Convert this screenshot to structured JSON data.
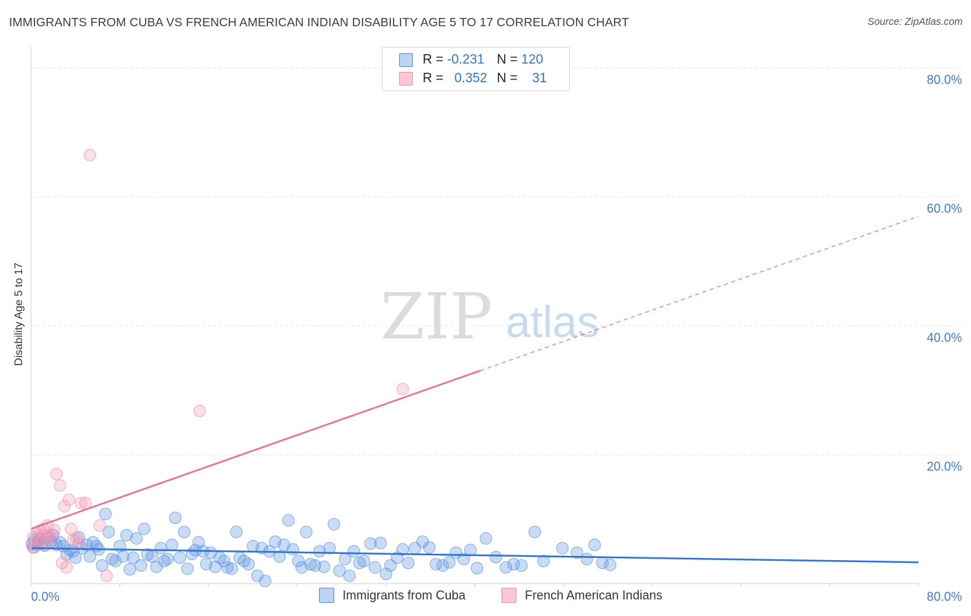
{
  "title": "IMMIGRANTS FROM CUBA VS FRENCH AMERICAN INDIAN DISABILITY AGE 5 TO 17 CORRELATION CHART",
  "source": "Source: ZipAtlas.com",
  "watermark": {
    "zip": "ZIP",
    "atlas": "atlas"
  },
  "legend": {
    "r_label": "R =",
    "n_label": "N =",
    "series": [
      {
        "name": "Immigrants from Cuba",
        "r": "-0.231",
        "n": "120"
      },
      {
        "name": "French American Indians",
        "r": "0.352",
        "n": "31"
      }
    ]
  },
  "chart_data": {
    "type": "scatter",
    "title": "IMMIGRANTS FROM CUBA VS FRENCH AMERICAN INDIAN DISABILITY AGE 5 TO 17 CORRELATION CHART",
    "xlabel": "",
    "ylabel": "Disability Age 5 to 17",
    "xlim": [
      0,
      80
    ],
    "ylim": [
      0,
      82
    ],
    "x_tick_labels": [
      "0.0%",
      "80.0%"
    ],
    "y_ticks": [
      20,
      40,
      60,
      80
    ],
    "y_tick_labels": [
      "20.0%",
      "40.0%",
      "60.0%",
      "80.0%"
    ],
    "colors": {
      "cuba": "#5b93df",
      "french": "#f094b1",
      "cuba_line": "#2f74d0",
      "french_line": "#e8709a"
    },
    "series": [
      {
        "name": "Immigrants from Cuba",
        "trend": {
          "x": [
            0,
            80
          ],
          "y": [
            5.5,
            3.3
          ],
          "style": "solid"
        },
        "points": [
          [
            0.1,
            6.2
          ],
          [
            0.2,
            5.6
          ],
          [
            0.3,
            6.8
          ],
          [
            0.5,
            6.0
          ],
          [
            0.6,
            6.5
          ],
          [
            0.8,
            7.0
          ],
          [
            1.0,
            6.2
          ],
          [
            1.2,
            5.9
          ],
          [
            1.5,
            7.2
          ],
          [
            1.8,
            6.5
          ],
          [
            2.0,
            7.5
          ],
          [
            2.3,
            6.0
          ],
          [
            2.6,
            6.4
          ],
          [
            2.9,
            5.8
          ],
          [
            3.2,
            4.5
          ],
          [
            3.5,
            5.2
          ],
          [
            3.8,
            5.0
          ],
          [
            4.0,
            4.0
          ],
          [
            4.3,
            7.2
          ],
          [
            4.6,
            5.5
          ],
          [
            5.0,
            6.0
          ],
          [
            5.3,
            4.2
          ],
          [
            5.6,
            6.4
          ],
          [
            5.9,
            5.8
          ],
          [
            6.1,
            5.3
          ],
          [
            6.4,
            2.8
          ],
          [
            6.7,
            10.8
          ],
          [
            7.0,
            8.0
          ],
          [
            7.3,
            3.8
          ],
          [
            7.6,
            3.5
          ],
          [
            8.0,
            5.8
          ],
          [
            8.3,
            4.2
          ],
          [
            8.6,
            7.5
          ],
          [
            8.9,
            2.2
          ],
          [
            9.2,
            4.0
          ],
          [
            9.5,
            7.0
          ],
          [
            9.9,
            2.8
          ],
          [
            10.2,
            8.5
          ],
          [
            10.5,
            4.5
          ],
          [
            10.9,
            4.2
          ],
          [
            11.3,
            2.6
          ],
          [
            11.7,
            5.5
          ],
          [
            12.0,
            3.5
          ],
          [
            12.3,
            3.8
          ],
          [
            12.7,
            6.0
          ],
          [
            13.0,
            10.2
          ],
          [
            13.4,
            4.0
          ],
          [
            13.8,
            8.0
          ],
          [
            14.1,
            2.3
          ],
          [
            14.5,
            4.6
          ],
          [
            14.8,
            5.2
          ],
          [
            15.1,
            6.4
          ],
          [
            15.5,
            5.0
          ],
          [
            15.8,
            3.0
          ],
          [
            16.2,
            4.8
          ],
          [
            16.6,
            2.6
          ],
          [
            17.0,
            4.0
          ],
          [
            17.4,
            3.5
          ],
          [
            17.7,
            2.5
          ],
          [
            18.1,
            2.3
          ],
          [
            18.5,
            8.0
          ],
          [
            18.8,
            4.0
          ],
          [
            19.2,
            3.5
          ],
          [
            19.6,
            3.0
          ],
          [
            20.0,
            5.8
          ],
          [
            20.4,
            1.2
          ],
          [
            20.8,
            5.5
          ],
          [
            21.1,
            0.4
          ],
          [
            21.5,
            5.0
          ],
          [
            22.0,
            6.5
          ],
          [
            22.4,
            4.2
          ],
          [
            22.8,
            6.0
          ],
          [
            23.2,
            9.8
          ],
          [
            23.6,
            5.3
          ],
          [
            24.1,
            3.5
          ],
          [
            24.4,
            2.5
          ],
          [
            24.8,
            8.0
          ],
          [
            25.2,
            3.0
          ],
          [
            25.6,
            2.8
          ],
          [
            26.0,
            5.0
          ],
          [
            26.4,
            2.6
          ],
          [
            26.9,
            5.5
          ],
          [
            27.3,
            9.2
          ],
          [
            27.8,
            2.0
          ],
          [
            28.3,
            3.8
          ],
          [
            28.7,
            1.2
          ],
          [
            29.1,
            5.0
          ],
          [
            29.6,
            3.2
          ],
          [
            30.0,
            3.5
          ],
          [
            30.6,
            6.2
          ],
          [
            31.0,
            2.5
          ],
          [
            31.5,
            6.3
          ],
          [
            32.0,
            1.5
          ],
          [
            32.4,
            2.8
          ],
          [
            33.0,
            4.0
          ],
          [
            33.5,
            5.3
          ],
          [
            34.0,
            3.2
          ],
          [
            34.6,
            5.5
          ],
          [
            35.3,
            6.5
          ],
          [
            35.9,
            5.6
          ],
          [
            36.5,
            3.0
          ],
          [
            37.1,
            2.8
          ],
          [
            37.7,
            3.3
          ],
          [
            38.3,
            4.8
          ],
          [
            39.0,
            3.8
          ],
          [
            39.6,
            5.2
          ],
          [
            40.2,
            2.4
          ],
          [
            41.0,
            7.0
          ],
          [
            41.9,
            4.1
          ],
          [
            42.8,
            2.5
          ],
          [
            43.5,
            3.0
          ],
          [
            44.2,
            2.8
          ],
          [
            45.4,
            8.0
          ],
          [
            46.2,
            3.5
          ],
          [
            47.9,
            5.5
          ],
          [
            49.2,
            4.8
          ],
          [
            50.1,
            3.8
          ],
          [
            50.8,
            6.0
          ],
          [
            51.5,
            3.2
          ],
          [
            52.2,
            2.9
          ]
        ]
      },
      {
        "name": "French American Indians",
        "trend": {
          "x": [
            0,
            80
          ],
          "y": [
            8.5,
            57.0
          ],
          "solid_until_x": 40.5
        },
        "points": [
          [
            0.1,
            6.0
          ],
          [
            0.2,
            7.2
          ],
          [
            0.3,
            5.6
          ],
          [
            0.5,
            7.8
          ],
          [
            0.6,
            6.3
          ],
          [
            0.8,
            8.2
          ],
          [
            1.0,
            6.8
          ],
          [
            1.1,
            8.5
          ],
          [
            1.2,
            7.5
          ],
          [
            1.3,
            6.0
          ],
          [
            1.5,
            9.0
          ],
          [
            1.7,
            7.2
          ],
          [
            1.9,
            7.6
          ],
          [
            2.1,
            8.3
          ],
          [
            2.3,
            17.0
          ],
          [
            2.6,
            15.2
          ],
          [
            2.8,
            3.2
          ],
          [
            3.0,
            12.0
          ],
          [
            3.2,
            2.5
          ],
          [
            3.4,
            13.0
          ],
          [
            3.6,
            8.5
          ],
          [
            3.8,
            6.8
          ],
          [
            4.1,
            7.0
          ],
          [
            4.3,
            6.2
          ],
          [
            4.5,
            12.5
          ],
          [
            4.9,
            12.5
          ],
          [
            5.3,
            66.5
          ],
          [
            6.2,
            9.0
          ],
          [
            6.8,
            1.2
          ],
          [
            15.2,
            26.8
          ],
          [
            33.5,
            30.2
          ]
        ]
      }
    ]
  }
}
